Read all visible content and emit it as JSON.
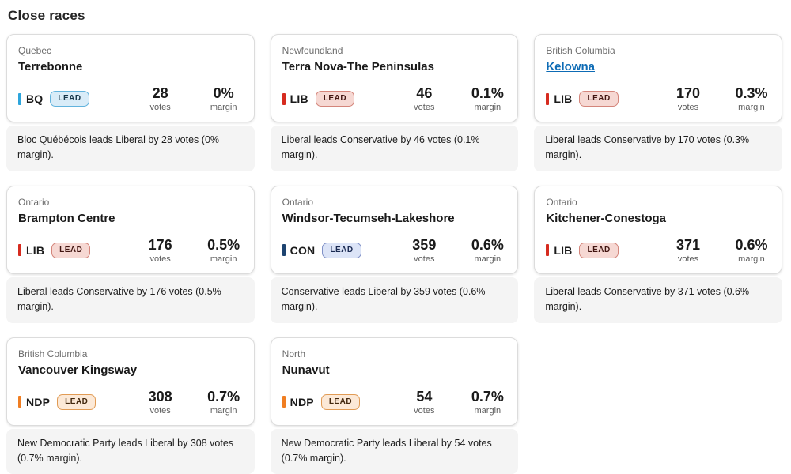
{
  "page": {
    "title": "Close races"
  },
  "labels": {
    "lead": "LEAD",
    "votes": "votes",
    "margin": "margin"
  },
  "theme": {
    "link_color": "#0d6bb5",
    "footer_bg": "#f4f4f4",
    "card_border": "#dcdcdc"
  },
  "parties": {
    "BQ": {
      "name": "Bloc Québécois",
      "bar": "#2da5dc",
      "badge_bg": "#d9ecf8",
      "badge_border": "#62b3dd",
      "badge_text": "#17364a"
    },
    "LIB": {
      "name": "Liberal",
      "bar": "#d62b1f",
      "badge_bg": "#f6d8d3",
      "badge_border": "#d4857b",
      "badge_text": "#411511"
    },
    "CON": {
      "name": "Conservative",
      "bar": "#1d4370",
      "badge_bg": "#dce4f7",
      "badge_border": "#8091c7",
      "badge_text": "#1a2a52"
    },
    "NDP": {
      "name": "New Democratic Party",
      "bar": "#f07e22",
      "badge_bg": "#fce9d7",
      "badge_border": "#e19b54",
      "badge_text": "#42280e"
    }
  },
  "cards": [
    {
      "region": "Quebec",
      "riding": "Terrebonne",
      "riding_is_link": false,
      "party": "BQ",
      "votes": "28",
      "margin": "0%",
      "summary": "Bloc Québécois leads Liberal by 28 votes (0% margin)."
    },
    {
      "region": "Newfoundland",
      "riding": "Terra Nova-The Peninsulas",
      "riding_is_link": false,
      "party": "LIB",
      "votes": "46",
      "margin": "0.1%",
      "summary": "Liberal leads Conservative by 46 votes (0.1% margin)."
    },
    {
      "region": "British Columbia",
      "riding": "Kelowna",
      "riding_is_link": true,
      "party": "LIB",
      "votes": "170",
      "margin": "0.3%",
      "summary": "Liberal leads Conservative by 170 votes (0.3% margin)."
    },
    {
      "region": "Ontario",
      "riding": "Brampton Centre",
      "riding_is_link": false,
      "party": "LIB",
      "votes": "176",
      "margin": "0.5%",
      "summary": "Liberal leads Conservative by 176 votes (0.5% margin)."
    },
    {
      "region": "Ontario",
      "riding": "Windsor-Tecumseh-Lakeshore",
      "riding_is_link": false,
      "party": "CON",
      "votes": "359",
      "margin": "0.6%",
      "summary": "Conservative leads Liberal by 359 votes (0.6% margin)."
    },
    {
      "region": "Ontario",
      "riding": "Kitchener-Conestoga",
      "riding_is_link": false,
      "party": "LIB",
      "votes": "371",
      "margin": "0.6%",
      "summary": "Liberal leads Conservative by 371 votes (0.6% margin)."
    },
    {
      "region": "British Columbia",
      "riding": "Vancouver Kingsway",
      "riding_is_link": false,
      "party": "NDP",
      "votes": "308",
      "margin": "0.7%",
      "summary": "New Democratic Party leads Liberal by 308 votes (0.7% margin)."
    },
    {
      "region": "North",
      "riding": "Nunavut",
      "riding_is_link": false,
      "party": "NDP",
      "votes": "54",
      "margin": "0.7%",
      "summary": "New Democratic Party leads Liberal by 54 votes (0.7% margin)."
    }
  ]
}
